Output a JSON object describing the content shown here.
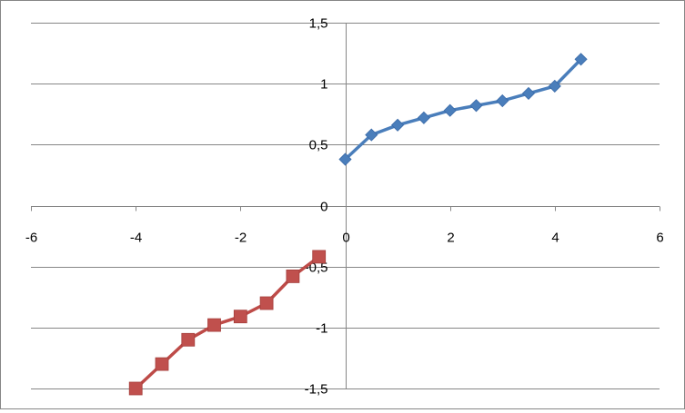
{
  "chart_data": {
    "type": "scatter",
    "title": "",
    "xlabel": "",
    "ylabel": "",
    "xlim": [
      -6,
      6
    ],
    "ylim": [
      -1.5,
      1.5
    ],
    "x_ticks": [
      -6,
      -4,
      -2,
      0,
      2,
      4,
      6
    ],
    "x_tick_labels": [
      "-6",
      "-4",
      "-2",
      "0",
      "2",
      "4",
      "6"
    ],
    "y_ticks": [
      -1.5,
      -1,
      -0.5,
      0,
      0.5,
      1,
      1.5
    ],
    "y_tick_labels": [
      "-1,5",
      "-1",
      "-0,5",
      "0",
      "0,5",
      "1",
      "1,5"
    ],
    "grid": "horizontal major gridlines",
    "legend": "none",
    "series": [
      {
        "marker": "diamond",
        "color": "#4A7EBB",
        "line_color": "#4A7EBB",
        "x": [
          0,
          0.5,
          1,
          1.5,
          2,
          2.5,
          3,
          3.5,
          4,
          4.5
        ],
        "y": [
          0.38,
          0.58,
          0.66,
          0.72,
          0.78,
          0.82,
          0.86,
          0.92,
          0.98,
          1.2
        ]
      },
      {
        "marker": "square",
        "color": "#C0504D",
        "line_color": "#BE4B48",
        "x": [
          -4,
          -3.5,
          -3,
          -2.5,
          -2,
          -1.5,
          -1,
          -0.5
        ],
        "y": [
          -1.5,
          -1.3,
          -1.1,
          -0.98,
          -0.91,
          -0.8,
          -0.58,
          -0.42
        ]
      }
    ]
  }
}
